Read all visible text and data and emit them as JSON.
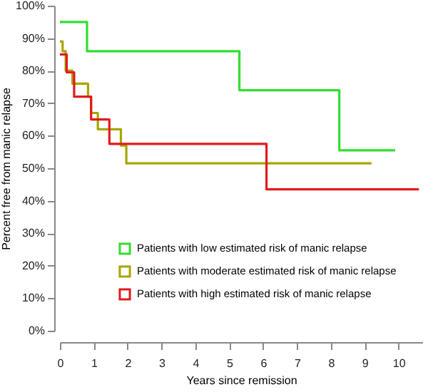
{
  "chart_data": {
    "type": "step",
    "xlabel": "Years since remission",
    "ylabel": "Percent free from manic relapse",
    "xlim": [
      0,
      10.7
    ],
    "xticks": [
      0,
      1,
      2,
      3,
      4,
      5,
      6,
      7,
      8,
      9,
      10
    ],
    "ylim": [
      0,
      100
    ],
    "yticks": [
      {
        "value": 0,
        "label": "0%"
      },
      {
        "value": 10,
        "label": "10%"
      },
      {
        "value": 20,
        "label": "20%"
      },
      {
        "value": 30,
        "label": "30%"
      },
      {
        "value": 40,
        "label": "40%"
      },
      {
        "value": 50,
        "label": "50%"
      },
      {
        "value": 60,
        "label": "60%"
      },
      {
        "value": 70,
        "label": "70%"
      },
      {
        "value": 80,
        "label": "80%"
      },
      {
        "value": 90,
        "label": "90%"
      },
      {
        "value": 100,
        "label": "100%"
      }
    ],
    "grid": false,
    "legend": "bottom right",
    "line_style": "solid",
    "series": [
      {
        "name": "Patients with low estimated risk of manic relapse",
        "color": "#33dd33",
        "x": [
          0,
          0.8,
          5.3,
          8.25,
          9.9
        ],
        "values": [
          95,
          86,
          74,
          55.5,
          55.5
        ]
      },
      {
        "name": "Patients with moderate estimated risk of manic relapse",
        "color": "#a6a600",
        "x": [
          0,
          0.08,
          0.17,
          0.37,
          0.83,
          0.92,
          1.12,
          1.8,
          1.96,
          9.2
        ],
        "values": [
          89,
          86,
          80,
          76,
          72,
          67,
          62,
          57,
          51.5,
          51.5
        ]
      },
      {
        "name": "Patients with high estimated risk of manic relapse",
        "color": "#e31a1c",
        "x": [
          0,
          0.2,
          0.42,
          0.92,
          1.46,
          6.1,
          10.6
        ],
        "values": [
          85,
          79.5,
          72,
          65,
          57.5,
          43.5,
          43.5
        ]
      }
    ]
  }
}
